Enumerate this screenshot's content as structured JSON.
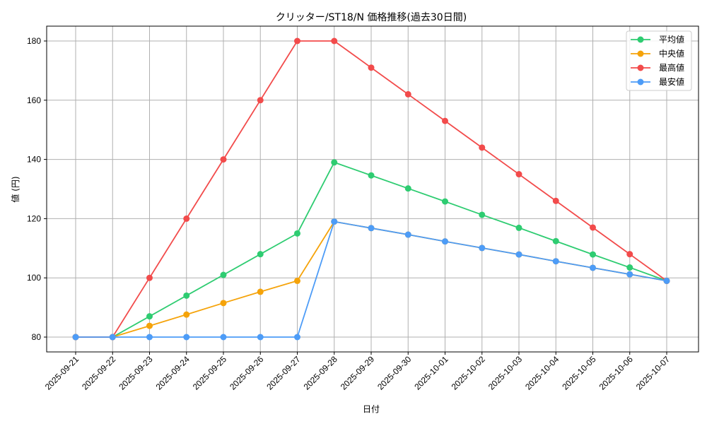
{
  "chart_data": {
    "type": "line",
    "title": "クリッター/ST18/N 価格推移(過去30日間)",
    "xlabel": "日付",
    "ylabel": "値 (円)",
    "ylim": [
      75,
      185
    ],
    "yticks": [
      80,
      100,
      120,
      140,
      160,
      180
    ],
    "grid": true,
    "legend_position": "upper right",
    "categories": [
      "2025-09-21",
      "2025-09-22",
      "2025-09-23",
      "2025-09-24",
      "2025-09-25",
      "2025-09-26",
      "2025-09-27",
      "2025-09-28",
      "2025-09-29",
      "2025-09-30",
      "2025-10-01",
      "2025-10-02",
      "2025-10-03",
      "2025-10-04",
      "2025-10-05",
      "2025-10-06",
      "2025-10-07"
    ],
    "series": [
      {
        "name": "平均値",
        "color": "#2ecc71",
        "values": [
          80,
          80,
          87,
          94,
          101,
          108,
          115,
          139,
          134.6,
          130.2,
          125.8,
          121.3,
          116.9,
          112.4,
          107.9,
          103.5,
          99
        ]
      },
      {
        "name": "中央値",
        "color": "#f5a30a",
        "values": [
          80,
          80,
          83.8,
          87.6,
          91.5,
          95.3,
          99,
          119,
          116.8,
          114.6,
          112.3,
          110.1,
          107.9,
          105.6,
          103.4,
          101.2,
          99
        ]
      },
      {
        "name": "最高値",
        "color": "#f24b4b",
        "values": [
          80,
          80,
          100,
          120,
          140,
          160,
          180,
          180,
          171,
          162,
          153,
          144,
          135,
          126,
          117,
          108,
          99
        ]
      },
      {
        "name": "最安値",
        "color": "#4d9cf7",
        "values": [
          80,
          80,
          80,
          80,
          80,
          80,
          80,
          119,
          116.8,
          114.6,
          112.3,
          110.1,
          107.9,
          105.6,
          103.4,
          101.2,
          99
        ]
      }
    ]
  }
}
